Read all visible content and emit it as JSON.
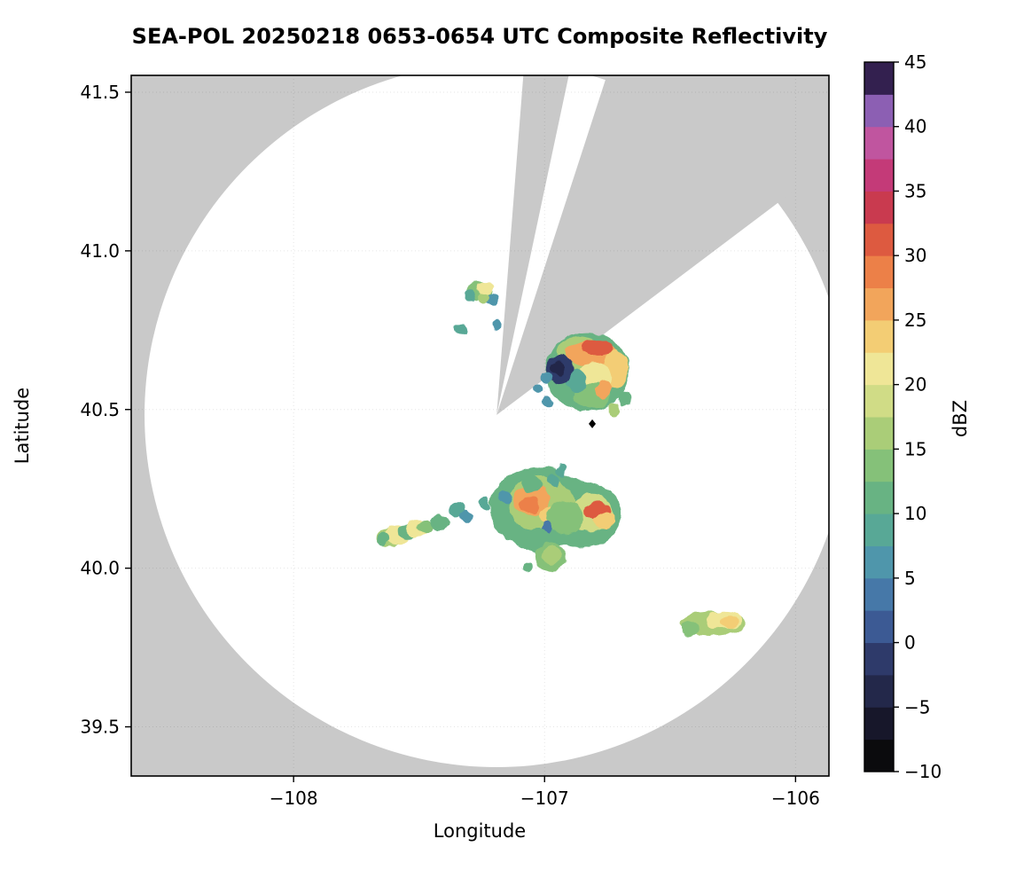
{
  "chart_data": {
    "type": "heatmap",
    "title": "SEA-POL 20250218 0653-0654 UTC Composite Reflectivity",
    "xlabel": "Longitude",
    "ylabel": "Latitude",
    "xlim": [
      -108.647,
      -105.867
    ],
    "ylim": [
      39.345,
      41.553
    ],
    "xticks": [
      -108,
      -107,
      -106
    ],
    "xtick_labels": [
      "−108",
      "−107",
      "−106"
    ],
    "yticks": [
      39.5,
      40.0,
      40.5,
      41.0,
      41.5
    ],
    "ytick_labels": [
      "39.5",
      "40.0",
      "40.5",
      "41.0",
      "41.5"
    ],
    "grid": true,
    "background_outside_coverage": "#c9c9c9",
    "coverage": {
      "center_lon": -107.191,
      "center_lat": 40.483,
      "radius_deg_lat": 1.11,
      "blocked_sectors_deg": [
        [
          4.5,
          12.5
        ],
        [
          18,
          55
        ]
      ]
    },
    "site_marker": {
      "lon": -106.81,
      "lat": 40.455,
      "symbol": "diamond",
      "color": "#000000"
    },
    "colorbar": {
      "label": "dBZ",
      "min": -10,
      "max": 45,
      "step": 2.5,
      "tick_values": [
        -10,
        -5,
        0,
        5,
        10,
        15,
        20,
        25,
        30,
        35,
        40,
        45
      ],
      "tick_labels": [
        "−10",
        "−5",
        "0",
        "5",
        "10",
        "15",
        "20",
        "25",
        "30",
        "35",
        "40",
        "45"
      ],
      "colors": [
        "#0b0b0d",
        "#17172a",
        "#23284a",
        "#2e3a6a",
        "#3c5a94",
        "#4678a8",
        "#4f96ab",
        "#58a896",
        "#68b383",
        "#85c179",
        "#aacd78",
        "#d0dc86",
        "#efe697",
        "#f3cd74",
        "#f2a55b",
        "#ec8048",
        "#dd5a40",
        "#c93a4f",
        "#c43a78",
        "#c0559f",
        "#8c5fb3",
        "#33204f"
      ]
    },
    "echoes": [
      {
        "lon": -107.26,
        "lat": 40.875,
        "w": 0.105,
        "h": 0.06,
        "dbz": 13
      },
      {
        "lon": -107.235,
        "lat": 40.885,
        "w": 0.06,
        "h": 0.045,
        "dbz": 20
      },
      {
        "lon": -107.295,
        "lat": 40.86,
        "w": 0.05,
        "h": 0.04,
        "dbz": 8
      },
      {
        "lon": -107.21,
        "lat": 40.845,
        "w": 0.055,
        "h": 0.04,
        "dbz": 7
      },
      {
        "lon": -107.24,
        "lat": 40.85,
        "w": 0.04,
        "h": 0.035,
        "dbz": 16
      },
      {
        "lon": -107.335,
        "lat": 40.755,
        "w": 0.05,
        "h": 0.035,
        "dbz": 8
      },
      {
        "lon": -107.19,
        "lat": 40.765,
        "w": 0.035,
        "h": 0.03,
        "dbz": 5
      },
      {
        "lon": -106.83,
        "lat": 40.62,
        "w": 0.33,
        "h": 0.25,
        "dbz": 11
      },
      {
        "lon": -106.86,
        "lat": 40.675,
        "w": 0.18,
        "h": 0.11,
        "dbz": 16
      },
      {
        "lon": -106.815,
        "lat": 40.675,
        "w": 0.21,
        "h": 0.08,
        "dbz": 25
      },
      {
        "lon": -106.79,
        "lat": 40.695,
        "w": 0.13,
        "h": 0.05,
        "dbz": 31
      },
      {
        "lon": -106.72,
        "lat": 40.625,
        "w": 0.1,
        "h": 0.12,
        "dbz": 24
      },
      {
        "lon": -106.8,
        "lat": 40.6,
        "w": 0.14,
        "h": 0.1,
        "dbz": 20
      },
      {
        "lon": -106.81,
        "lat": 40.545,
        "w": 0.15,
        "h": 0.08,
        "dbz": 13
      },
      {
        "lon": -106.765,
        "lat": 40.565,
        "w": 0.07,
        "h": 0.05,
        "dbz": 25
      },
      {
        "lon": -106.875,
        "lat": 40.59,
        "w": 0.08,
        "h": 0.07,
        "dbz": 8
      },
      {
        "lon": -106.94,
        "lat": 40.625,
        "w": 0.105,
        "h": 0.09,
        "dbz": -1
      },
      {
        "lon": -106.945,
        "lat": 40.63,
        "w": 0.055,
        "h": 0.05,
        "dbz": -4
      },
      {
        "lon": -106.995,
        "lat": 40.6,
        "w": 0.05,
        "h": 0.04,
        "dbz": 6
      },
      {
        "lon": -107.03,
        "lat": 40.565,
        "w": 0.04,
        "h": 0.03,
        "dbz": 6
      },
      {
        "lon": -106.99,
        "lat": 40.525,
        "w": 0.04,
        "h": 0.03,
        "dbz": 7
      },
      {
        "lon": -106.68,
        "lat": 40.535,
        "w": 0.06,
        "h": 0.05,
        "dbz": 12
      },
      {
        "lon": -106.725,
        "lat": 40.5,
        "w": 0.05,
        "h": 0.04,
        "dbz": 17
      },
      {
        "lon": -107.625,
        "lat": 40.095,
        "w": 0.1,
        "h": 0.055,
        "dbz": 16
      },
      {
        "lon": -107.585,
        "lat": 40.105,
        "w": 0.1,
        "h": 0.06,
        "dbz": 20
      },
      {
        "lon": -107.645,
        "lat": 40.09,
        "w": 0.05,
        "h": 0.04,
        "dbz": 11
      },
      {
        "lon": -107.545,
        "lat": 40.115,
        "w": 0.08,
        "h": 0.05,
        "dbz": 12
      },
      {
        "lon": -107.505,
        "lat": 40.125,
        "w": 0.09,
        "h": 0.055,
        "dbz": 21
      },
      {
        "lon": -107.475,
        "lat": 40.13,
        "w": 0.06,
        "h": 0.045,
        "dbz": 14
      },
      {
        "lon": -107.42,
        "lat": 40.145,
        "w": 0.07,
        "h": 0.05,
        "dbz": 10
      },
      {
        "lon": -107.35,
        "lat": 40.185,
        "w": 0.06,
        "h": 0.05,
        "dbz": 9
      },
      {
        "lon": -107.31,
        "lat": 40.165,
        "w": 0.045,
        "h": 0.04,
        "dbz": 7
      },
      {
        "lon": -107.02,
        "lat": 40.19,
        "w": 0.4,
        "h": 0.26,
        "dbz": 10
      },
      {
        "lon": -106.86,
        "lat": 40.17,
        "w": 0.33,
        "h": 0.21,
        "dbz": 11
      },
      {
        "lon": -107.015,
        "lat": 40.205,
        "w": 0.26,
        "h": 0.17,
        "dbz": 17
      },
      {
        "lon": -107.055,
        "lat": 40.215,
        "w": 0.15,
        "h": 0.095,
        "dbz": 26
      },
      {
        "lon": -107.06,
        "lat": 40.2,
        "w": 0.085,
        "h": 0.05,
        "dbz": 29
      },
      {
        "lon": -106.975,
        "lat": 40.165,
        "w": 0.09,
        "h": 0.06,
        "dbz": 23
      },
      {
        "lon": -106.815,
        "lat": 40.175,
        "w": 0.17,
        "h": 0.12,
        "dbz": 19
      },
      {
        "lon": -106.79,
        "lat": 40.18,
        "w": 0.11,
        "h": 0.055,
        "dbz": 30
      },
      {
        "lon": -106.765,
        "lat": 40.15,
        "w": 0.08,
        "h": 0.05,
        "dbz": 24
      },
      {
        "lon": -106.92,
        "lat": 40.16,
        "w": 0.15,
        "h": 0.1,
        "dbz": 13
      },
      {
        "lon": -107.05,
        "lat": 40.265,
        "w": 0.08,
        "h": 0.05,
        "dbz": 12
      },
      {
        "lon": -106.965,
        "lat": 40.275,
        "w": 0.05,
        "h": 0.04,
        "dbz": 8
      },
      {
        "lon": -107.16,
        "lat": 40.225,
        "w": 0.05,
        "h": 0.04,
        "dbz": 7
      },
      {
        "lon": -107.24,
        "lat": 40.205,
        "w": 0.04,
        "h": 0.035,
        "dbz": 8
      },
      {
        "lon": -106.99,
        "lat": 40.125,
        "w": 0.05,
        "h": 0.045,
        "dbz": 4
      },
      {
        "lon": -107.025,
        "lat": 40.085,
        "w": 0.12,
        "h": 0.08,
        "dbz": 12
      },
      {
        "lon": -106.975,
        "lat": 40.035,
        "w": 0.13,
        "h": 0.09,
        "dbz": 13
      },
      {
        "lon": -106.97,
        "lat": 40.04,
        "w": 0.08,
        "h": 0.055,
        "dbz": 17
      },
      {
        "lon": -107.07,
        "lat": 40.005,
        "w": 0.045,
        "h": 0.035,
        "dbz": 10
      },
      {
        "lon": -106.88,
        "lat": 40.1,
        "w": 0.05,
        "h": 0.04,
        "dbz": 11
      },
      {
        "lon": -106.93,
        "lat": 40.31,
        "w": 0.04,
        "h": 0.035,
        "dbz": 9
      },
      {
        "lon": -106.33,
        "lat": 39.825,
        "w": 0.26,
        "h": 0.075,
        "dbz": 16
      },
      {
        "lon": -106.285,
        "lat": 39.835,
        "w": 0.14,
        "h": 0.055,
        "dbz": 20
      },
      {
        "lon": -106.265,
        "lat": 39.83,
        "w": 0.07,
        "h": 0.04,
        "dbz": 23
      },
      {
        "lon": -106.42,
        "lat": 39.81,
        "w": 0.07,
        "h": 0.045,
        "dbz": 13
      }
    ]
  }
}
